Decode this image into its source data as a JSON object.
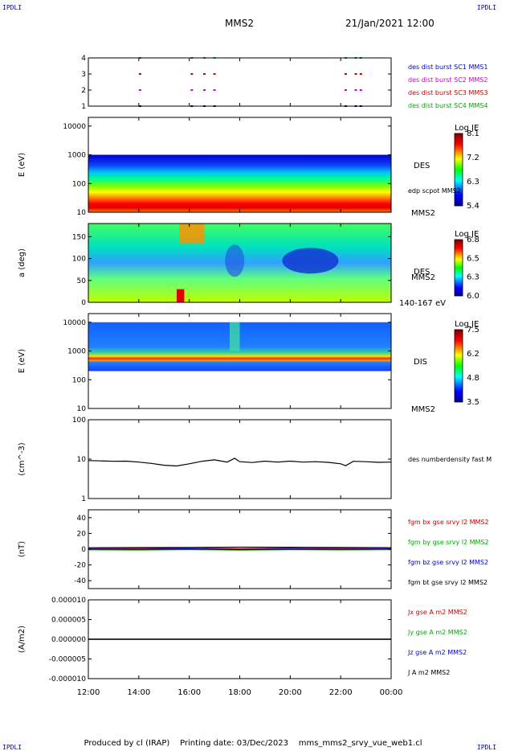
{
  "header": {
    "corner_label": "IPDLI",
    "title": "MMS2",
    "datetime": "21/Jan/2021 12:00"
  },
  "footer": {
    "producer": "Produced by cl (IRAP)",
    "printing_date": "Printing date: 03/Dec/2023",
    "filename": "mms_mms2_srvy_vue_web1.cl"
  },
  "colors": {
    "sc1": "#0000cc",
    "sc2": "#cc00cc",
    "sc3": "#cc0000",
    "sc4": "#00aa00",
    "bx": "#cc0000",
    "by": "#00aa00",
    "bz": "#0000cc",
    "bt": "#000000"
  },
  "time_axis": {
    "ticks": [
      "12:00",
      "14:00",
      "16:00",
      "18:00",
      "20:00",
      "22:00",
      "00:00"
    ],
    "start_hour": 12,
    "end_hour": 24
  },
  "chart_data": [
    {
      "type": "scatter",
      "ylabel": "",
      "yticks": [
        "1",
        "2",
        "3",
        "4"
      ],
      "ylim": [
        1,
        4
      ],
      "legend": [
        {
          "label": "des dist burst SC1 MMS1",
          "color": "#0000cc"
        },
        {
          "label": "des dist burst SC2 MMS2",
          "color": "#cc00cc"
        },
        {
          "label": "des dist burst SC3 MMS3",
          "color": "#cc0000"
        },
        {
          "label": "des dist burst SC4 MMS4",
          "color": "#00aa00"
        }
      ],
      "burst_times_hours": [
        14.05,
        16.1,
        16.6,
        17.0,
        22.2,
        22.6,
        22.8
      ]
    },
    {
      "type": "heatmap",
      "ylabel": "E (eV)",
      "yticks": [
        "10",
        "100",
        "1000",
        "10000"
      ],
      "ylim": [
        10,
        20000
      ],
      "label": "DES",
      "secondary_label": "edp scpot MMS2",
      "bottom_label": "MMS2",
      "colorbar": {
        "title": "Log JE",
        "ticks": [
          "8.1",
          "7.2",
          "6.3",
          "5.4"
        ]
      }
    },
    {
      "type": "heatmap",
      "ylabel": "a (deg)",
      "yticks": [
        "0",
        "50",
        "100",
        "150"
      ],
      "ylim": [
        0,
        180
      ],
      "label": "DES",
      "secondary_label": "MMS2",
      "bottom_label": "140-167 eV",
      "colorbar": {
        "title": "Log JE",
        "ticks": [
          "6.8",
          "6.5",
          "6.3",
          "6.0"
        ]
      }
    },
    {
      "type": "heatmap",
      "ylabel": "E (eV)",
      "yticks": [
        "10",
        "100",
        "1000",
        "10000"
      ],
      "ylim": [
        10,
        20000
      ],
      "label": "DIS",
      "bottom_label": "MMS2",
      "colorbar": {
        "title": "Log JE",
        "ticks": [
          "7.5",
          "6.2",
          "4.8",
          "3.5"
        ]
      }
    },
    {
      "type": "line",
      "ylabel": "(cm^-3)",
      "yticks": [
        "1",
        "10",
        "100"
      ],
      "ylim": [
        1,
        100
      ],
      "series": [
        {
          "name": "des numberdensity fast M",
          "color": "#000000",
          "x": [
            12,
            12.5,
            13,
            13.5,
            14,
            14.5,
            15,
            15.5,
            16,
            16.5,
            17,
            17.5,
            17.8,
            18,
            18.5,
            19,
            19.5,
            20,
            20.5,
            21,
            21.5,
            22,
            22.2,
            22.5,
            23,
            23.5,
            24
          ],
          "y": [
            9.2,
            9.0,
            8.8,
            8.9,
            8.4,
            7.8,
            7.0,
            6.7,
            7.6,
            8.8,
            9.6,
            8.4,
            10.5,
            8.6,
            8.2,
            8.9,
            8.4,
            8.9,
            8.4,
            8.6,
            8.3,
            7.6,
            6.8,
            8.8,
            8.6,
            8.3,
            8.4
          ]
        }
      ]
    },
    {
      "type": "line",
      "ylabel": "(nT)",
      "yticks": [
        "-40",
        "-20",
        "0",
        "20",
        "40"
      ],
      "ylim": [
        -50,
        50
      ],
      "series": [
        {
          "name": "fgm bx gse srvy l2 MMS2",
          "color": "#cc0000",
          "x": [
            12,
            14,
            16,
            18,
            20,
            22,
            24
          ],
          "y": [
            0.5,
            0.8,
            1.0,
            0.5,
            1.2,
            0.8,
            0.5
          ]
        },
        {
          "name": "fgm by gse srvy l2 MMS2",
          "color": "#00aa00",
          "x": [
            12,
            14,
            16,
            18,
            20,
            22,
            24
          ],
          "y": [
            -0.8,
            -1.0,
            -0.5,
            -1.2,
            -0.6,
            -0.9,
            -0.7
          ]
        },
        {
          "name": "fgm bz gse srvy l2 MMS2",
          "color": "#0000cc",
          "x": [
            12,
            14,
            16,
            18,
            20,
            22,
            24
          ],
          "y": [
            0.2,
            -0.3,
            0.4,
            -0.5,
            0.1,
            -0.2,
            0.3
          ]
        },
        {
          "name": "fgm bt gse srvy l2 MMS2",
          "color": "#000000",
          "x": [
            12,
            14,
            16,
            18,
            20,
            22,
            24
          ],
          "y": [
            1.8,
            2.0,
            2.2,
            2.6,
            2.4,
            2.1,
            1.9
          ]
        }
      ]
    },
    {
      "type": "line",
      "ylabel": "(A/m2)",
      "yticks": [
        "-0.000010",
        "-0.000005",
        "0.000000",
        "0.000005",
        "0.000010"
      ],
      "ylim": [
        -1e-05,
        1e-05
      ],
      "series": [
        {
          "name": "Jx gse A m2 MMS2",
          "color": "#cc0000",
          "x": [
            12,
            24
          ],
          "y": [
            0,
            0
          ]
        },
        {
          "name": "Jy gse A m2 MMS2",
          "color": "#00aa00",
          "x": [
            12,
            24
          ],
          "y": [
            0,
            0
          ]
        },
        {
          "name": "Jz gse A m2 MMS2",
          "color": "#0000cc",
          "x": [
            12,
            24
          ],
          "y": [
            0,
            0
          ]
        },
        {
          "name": "J A m2 MMS2",
          "color": "#000000",
          "x": [
            12,
            24
          ],
          "y": [
            0,
            0
          ]
        }
      ]
    }
  ]
}
